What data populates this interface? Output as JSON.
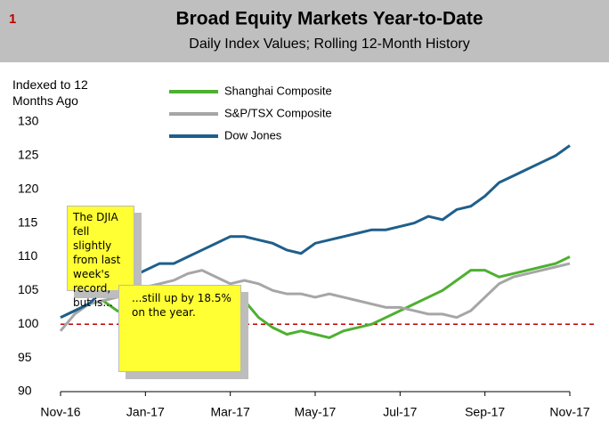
{
  "chart_data": {
    "type": "line",
    "page_number": "1",
    "title": "Broad Equity Markets Year-to-Date",
    "subtitle": "Daily Index Values; Rolling 12-Month History",
    "y_axis_label": "Indexed to 12 Months Ago",
    "categories": [
      "Nov-16",
      null,
      null,
      null,
      null,
      null,
      "Jan-17",
      null,
      null,
      null,
      null,
      null,
      "Mar-17",
      null,
      null,
      null,
      null,
      null,
      "May-17",
      null,
      null,
      null,
      null,
      null,
      "Jul-17",
      null,
      null,
      null,
      null,
      null,
      "Sep-17",
      null,
      null,
      null,
      null,
      null,
      "Nov-17"
    ],
    "series": [
      {
        "name": "Shanghai Composite",
        "color": "#4eb030",
        "values": [
          101,
          102,
          103,
          103.5,
          102,
          101,
          100,
          100.5,
          102,
          103,
          104,
          104.5,
          103,
          103.5,
          101,
          99.5,
          98.5,
          99,
          98.5,
          98,
          99,
          99.5,
          100,
          101,
          102,
          103,
          104,
          105,
          106.5,
          108,
          108,
          107,
          107.5,
          108,
          108.5,
          109,
          110
        ]
      },
      {
        "name": "S&P/TSX Composite",
        "color": "#a6a6a6",
        "values": [
          99,
          101.5,
          103,
          103.5,
          104,
          105,
          105.5,
          106,
          106.5,
          107.5,
          108,
          107,
          106,
          106.5,
          106,
          105,
          104.5,
          104.5,
          104,
          104.5,
          104,
          103.5,
          103,
          102.5,
          102.5,
          102,
          101.5,
          101.5,
          101,
          102,
          104,
          106,
          107,
          107.5,
          108,
          108.5,
          109
        ]
      },
      {
        "name": "Dow Jones",
        "color": "#1f5f8b",
        "values": [
          101,
          102,
          103,
          105,
          106,
          107,
          108,
          109,
          109,
          110,
          111,
          112,
          113,
          113,
          112.5,
          112,
          111,
          110.5,
          112,
          112.5,
          113,
          113.5,
          114,
          114,
          114.5,
          115,
          116,
          115.5,
          117,
          117.5,
          119,
          121,
          122,
          123,
          124,
          125,
          126.5
        ]
      }
    ],
    "ylim": [
      90,
      130
    ],
    "yticks": [
      90,
      95,
      100,
      105,
      110,
      115,
      120,
      125,
      130
    ],
    "reference_line": {
      "value": 100,
      "color": "#c00000"
    },
    "annotations": [
      "The DJIA fell slightly from last week's record, but is...",
      "...still up by 18.5% on the year."
    ]
  }
}
